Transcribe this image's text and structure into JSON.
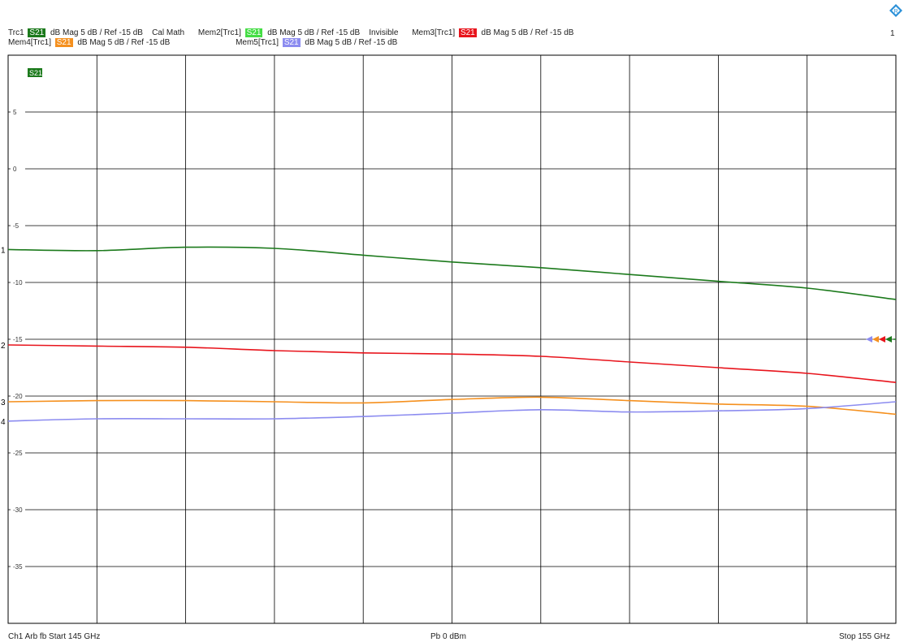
{
  "header": {
    "channel_number": "1",
    "row1": [
      {
        "trace": "Trc1",
        "badge": "S21",
        "color": "#1c7a1c",
        "format": "dB Mag  5 dB /  Ref -15 dB",
        "extra": "Cal Math"
      },
      {
        "trace": "Mem2[Trc1]",
        "badge": "S21",
        "color": "#44dd44",
        "format": "dB Mag  5 dB /  Ref -15 dB",
        "extra": "Invisible"
      },
      {
        "trace": "Mem3[Trc1]",
        "badge": "S21",
        "color": "#e8141c",
        "format": "dB Mag  5 dB /  Ref -15 dB",
        "extra": ""
      }
    ],
    "row2": [
      {
        "trace": "Mem4[Trc1]",
        "badge": "S21",
        "color": "#f5901e",
        "format": "dB Mag  5 dB /  Ref -15 dB",
        "extra": ""
      },
      {
        "trace": "Mem5[Trc1]",
        "badge": "S21",
        "color": "#8c8cf0",
        "format": "dB Mag  5 dB /  Ref -15 dB",
        "extra": ""
      }
    ]
  },
  "footer": {
    "left": "Ch1  Arb fb  Start  145 GHz",
    "center": "Pb   0 dBm",
    "right": "Stop  155 GHz"
  },
  "chart_data": {
    "type": "line",
    "plot_badge": "S21",
    "xlabel": "",
    "ylabel": "",
    "xlim": [
      145,
      155
    ],
    "ylim": [
      -40,
      10
    ],
    "yticks": [
      5,
      0,
      -5,
      -10,
      -15,
      -20,
      -25,
      -30,
      -35
    ],
    "ytick_labels": [
      "5",
      "0",
      "-5",
      "-10",
      "-15",
      "-20",
      "-25",
      "-30",
      "-35"
    ],
    "grid": true,
    "reference_level": -15,
    "colors": {
      "trc1": "#1c7a1c",
      "mem3": "#e8141c",
      "mem4": "#f5901e",
      "mem5": "#8c8cf0"
    },
    "x": [
      145,
      146,
      147,
      148,
      149,
      150,
      151,
      152,
      153,
      154,
      155
    ],
    "series": [
      {
        "name": "Trc1",
        "marker": "1",
        "color": "#1c7a1c",
        "values": [
          -7.1,
          -7.2,
          -6.9,
          -7.0,
          -7.6,
          -8.2,
          -8.7,
          -9.3,
          -9.9,
          -10.5,
          -11.5
        ]
      },
      {
        "name": "Mem3[Trc1]",
        "marker": "2",
        "color": "#e8141c",
        "values": [
          -15.5,
          -15.6,
          -15.7,
          -16.0,
          -16.2,
          -16.3,
          -16.5,
          -17.0,
          -17.5,
          -18.0,
          -18.8
        ]
      },
      {
        "name": "Mem4[Trc1]",
        "marker": "3",
        "color": "#f5901e",
        "values": [
          -20.5,
          -20.4,
          -20.4,
          -20.5,
          -20.6,
          -20.3,
          -20.1,
          -20.4,
          -20.7,
          -20.9,
          -21.6
        ]
      },
      {
        "name": "Mem5[Trc1]",
        "marker": "4",
        "color": "#8c8cf0",
        "values": [
          -22.2,
          -22.0,
          -22.0,
          -22.0,
          -21.8,
          -21.5,
          -21.2,
          -21.4,
          -21.3,
          -21.1,
          -20.5
        ]
      }
    ],
    "ref_arrow_colors": [
      "#8c8cf0",
      "#f5901e",
      "#e8141c",
      "#1c7a1c"
    ]
  }
}
